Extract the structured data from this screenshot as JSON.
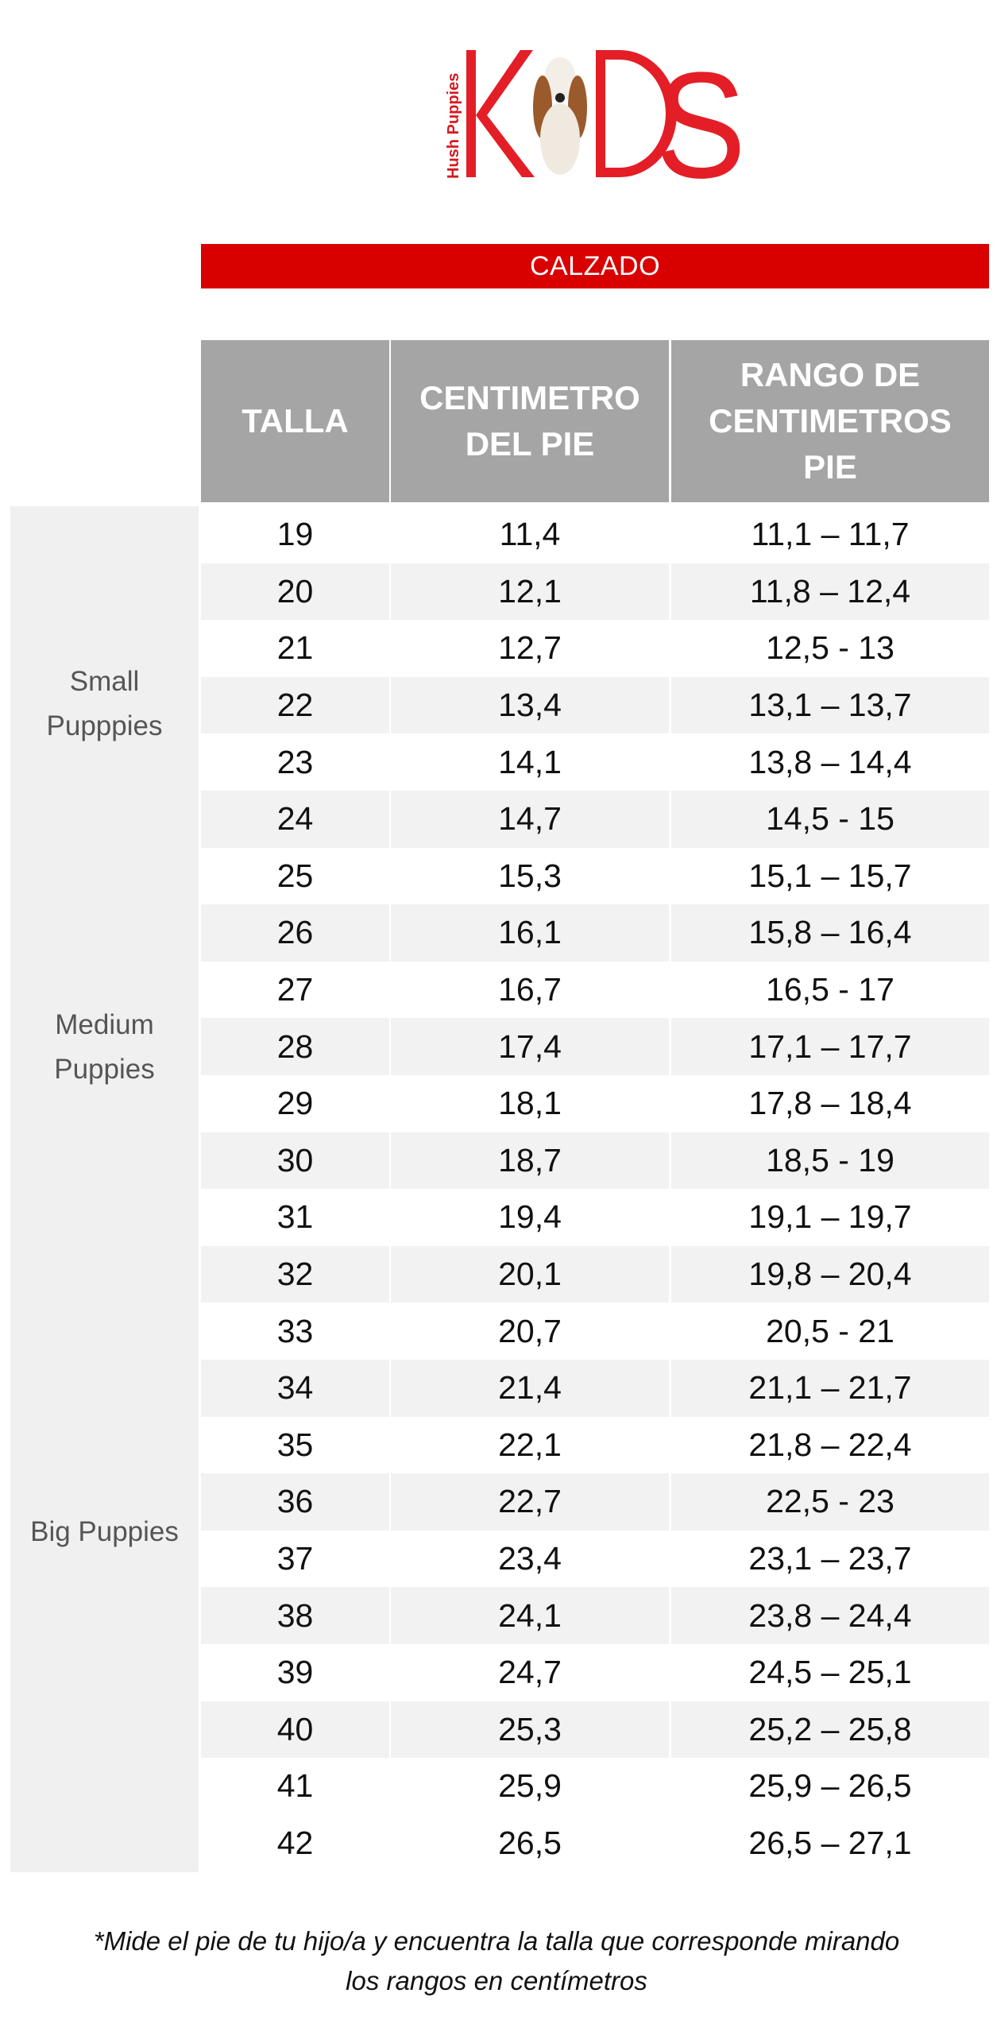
{
  "logo": {
    "brand": "Hush Puppies",
    "text": "KIDS"
  },
  "section_title": "CALZADO",
  "table": {
    "headers": [
      "TALLA",
      "CENTIMETRO\nDEL PIE",
      "RANGO DE\nCENTIMETROS\nPIE"
    ],
    "groups": [
      "Small\nPupppies",
      "Medium\nPuppies",
      "Big Puppies"
    ],
    "rows": [
      [
        "19",
        "11,4",
        "11,1 – 11,7"
      ],
      [
        "20",
        "12,1",
        "11,8 – 12,4"
      ],
      [
        "21",
        "12,7",
        "12,5 - 13"
      ],
      [
        "22",
        "13,4",
        "13,1 – 13,7"
      ],
      [
        "23",
        "14,1",
        "13,8 – 14,4"
      ],
      [
        "24",
        "14,7",
        "14,5 - 15"
      ],
      [
        "25",
        "15,3",
        "15,1 – 15,7"
      ],
      [
        "26",
        "16,1",
        "15,8 – 16,4"
      ],
      [
        "27",
        "16,7",
        "16,5 - 17"
      ],
      [
        "28",
        "17,4",
        "17,1 – 17,7"
      ],
      [
        "29",
        "18,1",
        "17,8 – 18,4"
      ],
      [
        "30",
        "18,7",
        "18,5 - 19"
      ],
      [
        "31",
        "19,4",
        "19,1 – 19,7"
      ],
      [
        "32",
        "20,1",
        "19,8 – 20,4"
      ],
      [
        "33",
        "20,7",
        "20,5 - 21"
      ],
      [
        "34",
        "21,4",
        "21,1 – 21,7"
      ],
      [
        "35",
        "22,1",
        "21,8 – 22,4"
      ],
      [
        "36",
        "22,7",
        "22,5 - 23"
      ],
      [
        "37",
        "23,4",
        "23,1 – 23,7"
      ],
      [
        "38",
        "24,1",
        "23,8 – 24,4"
      ],
      [
        "39",
        "24,7",
        "24,5 – 25,1"
      ],
      [
        "40",
        "25,3",
        "25,2 – 25,8"
      ],
      [
        "41",
        "25,9",
        "25,9 – 26,5"
      ],
      [
        "42",
        "26,5",
        "26,5 – 27,1"
      ]
    ]
  },
  "note": "*Mide el pie de tu hijo/a y encuentra la talla que corresponde mirando\nlos rangos en centímetros",
  "colors": {
    "brand_red": "#d90000",
    "header_grey": "#a5a5a5",
    "row_shade": "#f2f2f2"
  }
}
